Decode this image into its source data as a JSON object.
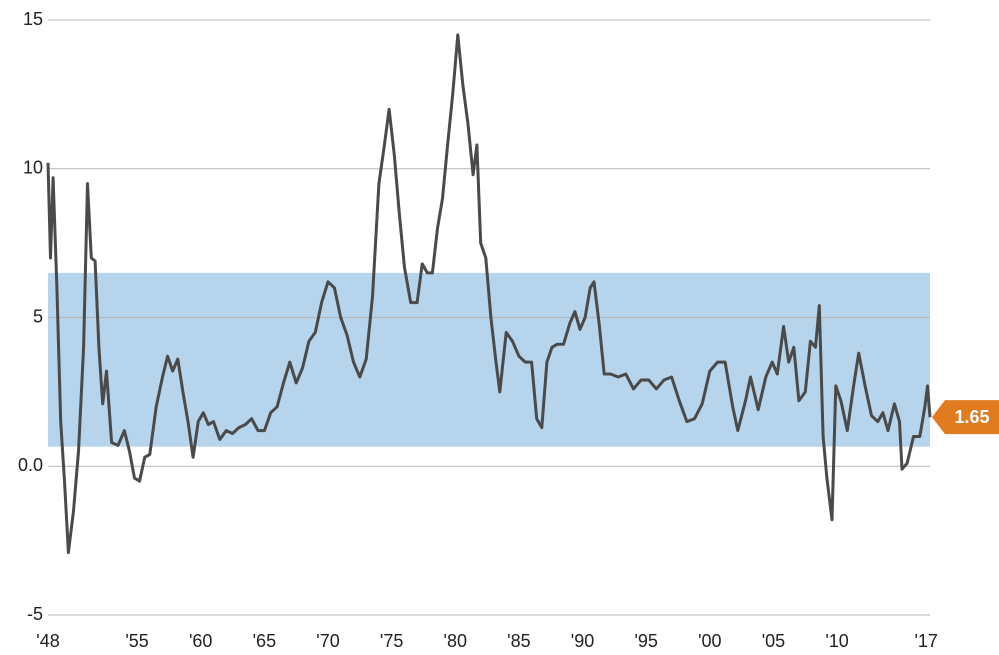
{
  "chart_data": {
    "type": "line",
    "xlim": [
      1948,
      2017.3
    ],
    "xticks": [
      {
        "value": 1948,
        "label": "'48"
      },
      {
        "value": 1955,
        "label": "'55"
      },
      {
        "value": 1960,
        "label": "'60"
      },
      {
        "value": 1965,
        "label": "'65"
      },
      {
        "value": 1970,
        "label": "'70"
      },
      {
        "value": 1975,
        "label": "'75"
      },
      {
        "value": 1980,
        "label": "'80"
      },
      {
        "value": 1985,
        "label": "'85"
      },
      {
        "value": 1990,
        "label": "'90"
      },
      {
        "value": 1995,
        "label": "'95"
      },
      {
        "value": 2000,
        "label": "'00"
      },
      {
        "value": 2005,
        "label": "'05"
      },
      {
        "value": 2010,
        "label": "'10"
      },
      {
        "value": 2017,
        "label": "'17"
      }
    ],
    "ylim": [
      -5,
      15
    ],
    "yticks": [
      15,
      10,
      5,
      {
        "value": 0,
        "label": "0.0"
      },
      -5
    ],
    "grid": true,
    "shaded_range": [
      0.66,
      6.5
    ],
    "shaded_color": "#b6d4ec",
    "callout_color": "#e07b1f",
    "series": [
      {
        "color": "#4a4a4a",
        "x": [
          1948.0,
          1948.2,
          1948.4,
          1948.7,
          1949.0,
          1949.3,
          1949.6,
          1950.0,
          1950.4,
          1950.8,
          1951.1,
          1951.4,
          1951.7,
          1952.0,
          1952.3,
          1952.6,
          1953.0,
          1953.5,
          1954.0,
          1954.4,
          1954.8,
          1955.2,
          1955.6,
          1956.0,
          1956.5,
          1957.0,
          1957.4,
          1957.8,
          1958.2,
          1958.6,
          1959.0,
          1959.4,
          1959.8,
          1960.2,
          1960.6,
          1961.0,
          1961.5,
          1962.0,
          1962.5,
          1963.0,
          1963.5,
          1964.0,
          1964.5,
          1965.0,
          1965.5,
          1966.0,
          1966.5,
          1967.0,
          1967.5,
          1968.0,
          1968.5,
          1969.0,
          1969.5,
          1970.0,
          1970.5,
          1971.0,
          1971.5,
          1972.0,
          1972.5,
          1973.0,
          1973.5,
          1974.0,
          1974.4,
          1974.8,
          1975.2,
          1975.6,
          1976.0,
          1976.5,
          1977.0,
          1977.4,
          1977.8,
          1978.2,
          1978.6,
          1979.0,
          1979.4,
          1979.8,
          1980.2,
          1980.6,
          1981.0,
          1981.4,
          1981.7,
          1982.0,
          1982.4,
          1982.8,
          1983.2,
          1983.5,
          1984.0,
          1984.5,
          1985.0,
          1985.5,
          1986.0,
          1986.4,
          1986.8,
          1987.2,
          1987.6,
          1988.0,
          1988.5,
          1989.0,
          1989.4,
          1989.8,
          1990.2,
          1990.6,
          1990.9,
          1991.3,
          1991.7,
          1992.2,
          1992.8,
          1993.4,
          1994.0,
          1994.6,
          1995.2,
          1995.8,
          1996.4,
          1997.0,
          1997.6,
          1998.2,
          1998.8,
          1999.4,
          2000.0,
          2000.6,
          2001.2,
          2001.8,
          2002.2,
          2002.8,
          2003.2,
          2003.8,
          2004.4,
          2004.9,
          2005.3,
          2005.8,
          2006.2,
          2006.6,
          2007.0,
          2007.5,
          2007.9,
          2008.3,
          2008.6,
          2008.9,
          2009.2,
          2009.6,
          2009.9,
          2010.3,
          2010.8,
          2011.3,
          2011.7,
          2012.2,
          2012.7,
          2013.2,
          2013.6,
          2014.0,
          2014.5,
          2014.9,
          2015.1,
          2015.5,
          2016.0,
          2016.5,
          2016.9,
          2017.1,
          2017.3
        ],
        "values": [
          10.2,
          7,
          9.7,
          6,
          1.5,
          -0.5,
          -2.9,
          -1.5,
          0.5,
          4,
          9.5,
          7,
          6.9,
          4,
          2.1,
          3.2,
          0.8,
          0.7,
          1.2,
          0.5,
          -0.4,
          -0.5,
          0.3,
          0.4,
          2,
          3,
          3.7,
          3.2,
          3.6,
          2.5,
          1.5,
          0.3,
          1.5,
          1.8,
          1.4,
          1.5,
          0.9,
          1.2,
          1.1,
          1.3,
          1.4,
          1.6,
          1.2,
          1.2,
          1.8,
          2,
          2.8,
          3.5,
          2.8,
          3.3,
          4.2,
          4.5,
          5.5,
          6.2,
          6,
          5,
          4.4,
          3.5,
          3,
          3.6,
          5.7,
          9.5,
          10.7,
          12,
          10.5,
          8.5,
          6.7,
          5.5,
          5.5,
          6.8,
          6.5,
          6.5,
          8,
          9,
          10.8,
          12.5,
          14.5,
          12.8,
          11.5,
          9.8,
          10.8,
          7.5,
          7,
          5,
          3.5,
          2.5,
          4.5,
          4.2,
          3.7,
          3.5,
          3.5,
          1.6,
          1.3,
          3.5,
          4,
          4.1,
          4.1,
          4.8,
          5.2,
          4.6,
          5,
          6,
          6.2,
          4.8,
          3.1,
          3.1,
          3.0,
          3.1,
          2.6,
          2.9,
          2.9,
          2.6,
          2.9,
          3,
          2.2,
          1.5,
          1.6,
          2.1,
          3.2,
          3.5,
          3.5,
          2,
          1.2,
          2.2,
          3,
          1.9,
          3,
          3.5,
          3.1,
          4.7,
          3.5,
          4,
          2.2,
          2.5,
          4.2,
          4.0,
          5.4,
          1,
          -0.4,
          -1.8,
          2.7,
          2.2,
          1.2,
          2.7,
          3.8,
          2.7,
          1.7,
          1.5,
          1.8,
          1.2,
          2.1,
          1.5,
          -0.1,
          0.1,
          1.0,
          1.0,
          2.0,
          2.7,
          1.65
        ]
      }
    ]
  }
}
